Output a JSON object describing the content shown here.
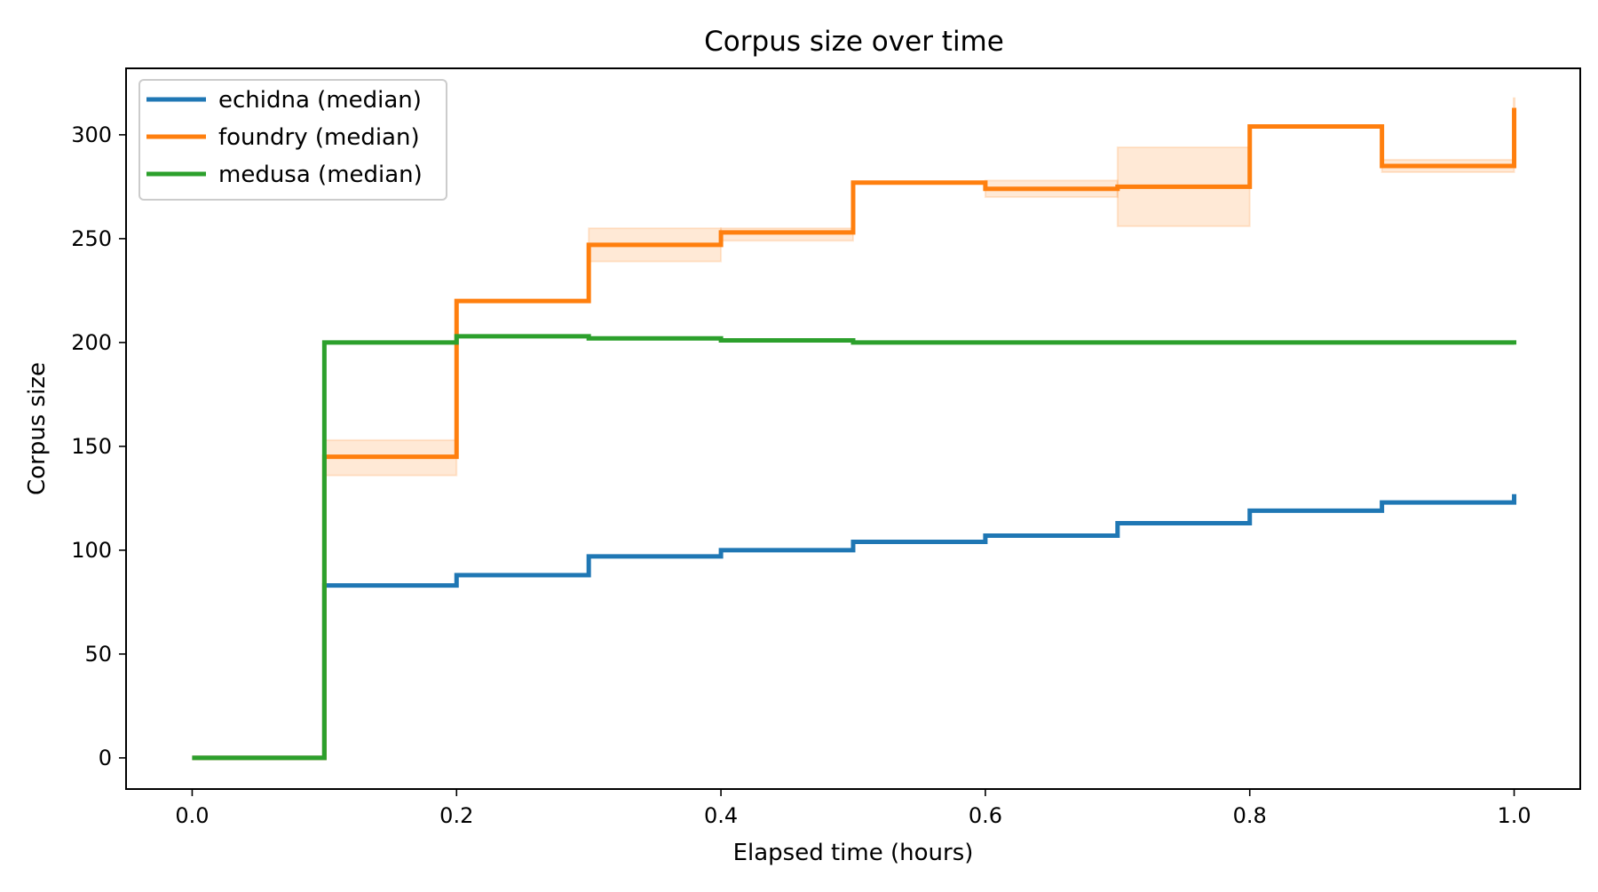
{
  "chart_data": {
    "type": "line",
    "step": "post",
    "title": "Corpus size over time",
    "xlabel": "Elapsed time (hours)",
    "ylabel": "Corpus size",
    "xlim": [
      -0.05,
      1.05
    ],
    "ylim": [
      -15,
      332
    ],
    "xticks": [
      0.0,
      0.2,
      0.4,
      0.6,
      0.8,
      1.0
    ],
    "xtick_labels": [
      "0.0",
      "0.2",
      "0.4",
      "0.6",
      "0.8",
      "1.0"
    ],
    "yticks": [
      0,
      50,
      100,
      150,
      200,
      250,
      300
    ],
    "ytick_labels": [
      "0",
      "50",
      "100",
      "150",
      "200",
      "250",
      "300"
    ],
    "grid": false,
    "legend_position": "top-left",
    "x": [
      0.0,
      0.1,
      0.2,
      0.3,
      0.4,
      0.5,
      0.6,
      0.7,
      0.8,
      0.9,
      1.0
    ],
    "series": [
      {
        "name": "echidna (median)",
        "color": "#1f77b4",
        "values": [
          0,
          83,
          88,
          97,
          100,
          104,
          107,
          113,
          119,
          123,
          127
        ],
        "band_low": [
          0,
          83,
          88,
          97,
          100,
          104,
          107,
          113,
          119,
          123,
          127
        ],
        "band_high": [
          0,
          83,
          88,
          97,
          100,
          104,
          107,
          113,
          119,
          123,
          127
        ]
      },
      {
        "name": "foundry (median)",
        "color": "#ff7f0e",
        "values": [
          0,
          145,
          220,
          247,
          253,
          277,
          274,
          275,
          304,
          285,
          313
        ],
        "band_low": [
          0,
          136,
          220,
          239,
          249,
          277,
          270,
          256,
          304,
          282,
          313
        ],
        "band_high": [
          0,
          153,
          220,
          255,
          255,
          277,
          278,
          294,
          304,
          288,
          318
        ]
      },
      {
        "name": "medusa (median)",
        "color": "#2ca02c",
        "values": [
          0,
          200,
          203,
          202,
          201,
          200,
          200,
          200,
          200,
          200,
          199
        ],
        "band_low": [
          0,
          200,
          203,
          202,
          201,
          200,
          200,
          200,
          200,
          200,
          199
        ],
        "band_high": [
          0,
          200,
          203,
          202,
          201,
          200,
          200,
          200,
          200,
          200,
          199
        ]
      }
    ]
  }
}
